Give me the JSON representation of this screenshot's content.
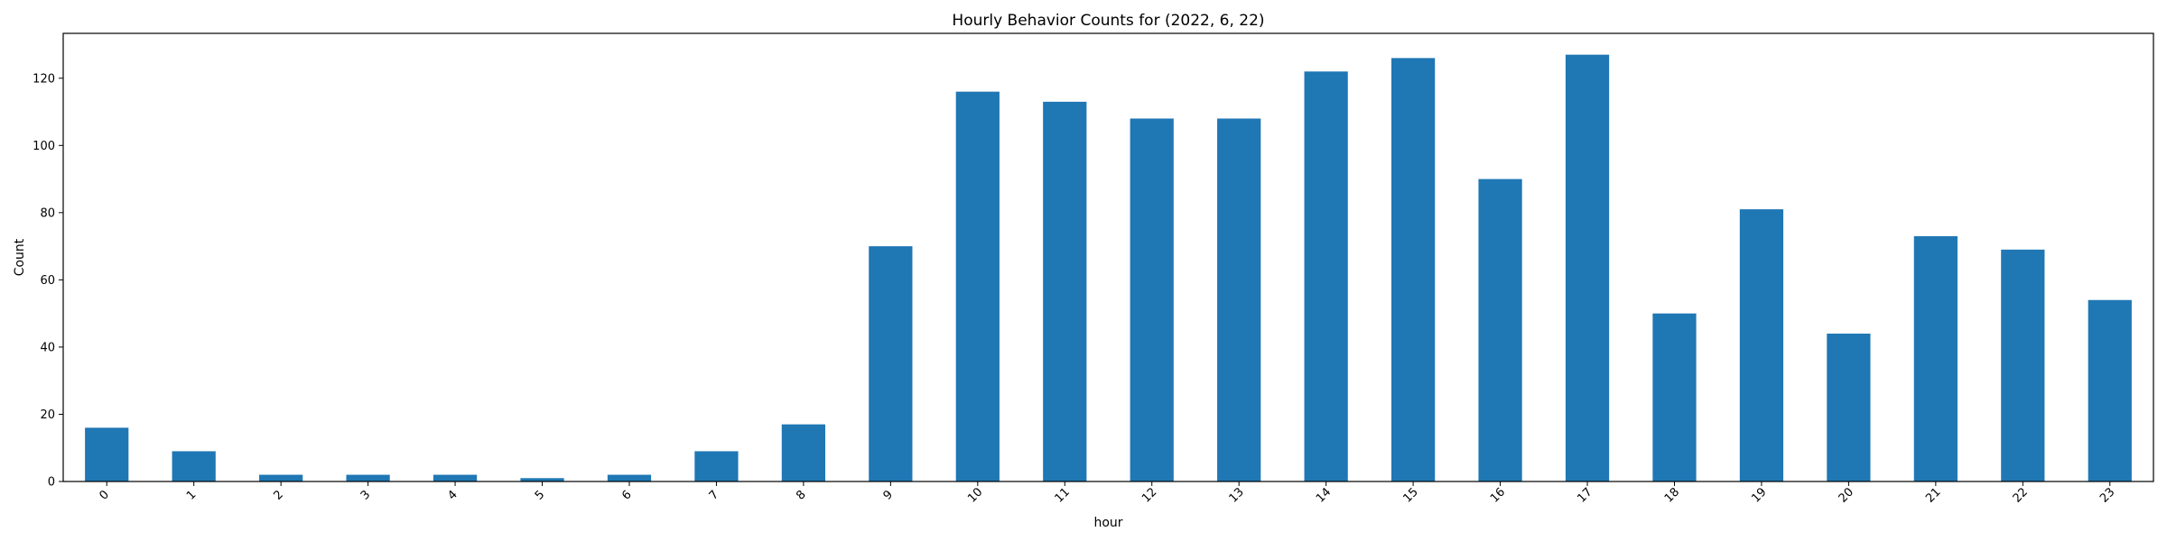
{
  "chart_data": {
    "type": "bar",
    "title": "Hourly Behavior Counts for (2022, 6, 22)",
    "xlabel": "hour",
    "ylabel": "Count",
    "categories": [
      "0",
      "1",
      "2",
      "3",
      "4",
      "5",
      "6",
      "7",
      "8",
      "9",
      "10",
      "11",
      "12",
      "13",
      "14",
      "15",
      "16",
      "17",
      "18",
      "19",
      "20",
      "21",
      "22",
      "23"
    ],
    "values": [
      16,
      9,
      2,
      2,
      2,
      1,
      2,
      9,
      17,
      70,
      116,
      113,
      108,
      108,
      122,
      126,
      90,
      127,
      50,
      81,
      44,
      73,
      69,
      54
    ],
    "ylim": [
      0,
      133.35
    ],
    "yticks": [
      0,
      20,
      40,
      60,
      80,
      100,
      120
    ],
    "bar_color": "#1f77b4",
    "grid": false,
    "legend": "none"
  }
}
